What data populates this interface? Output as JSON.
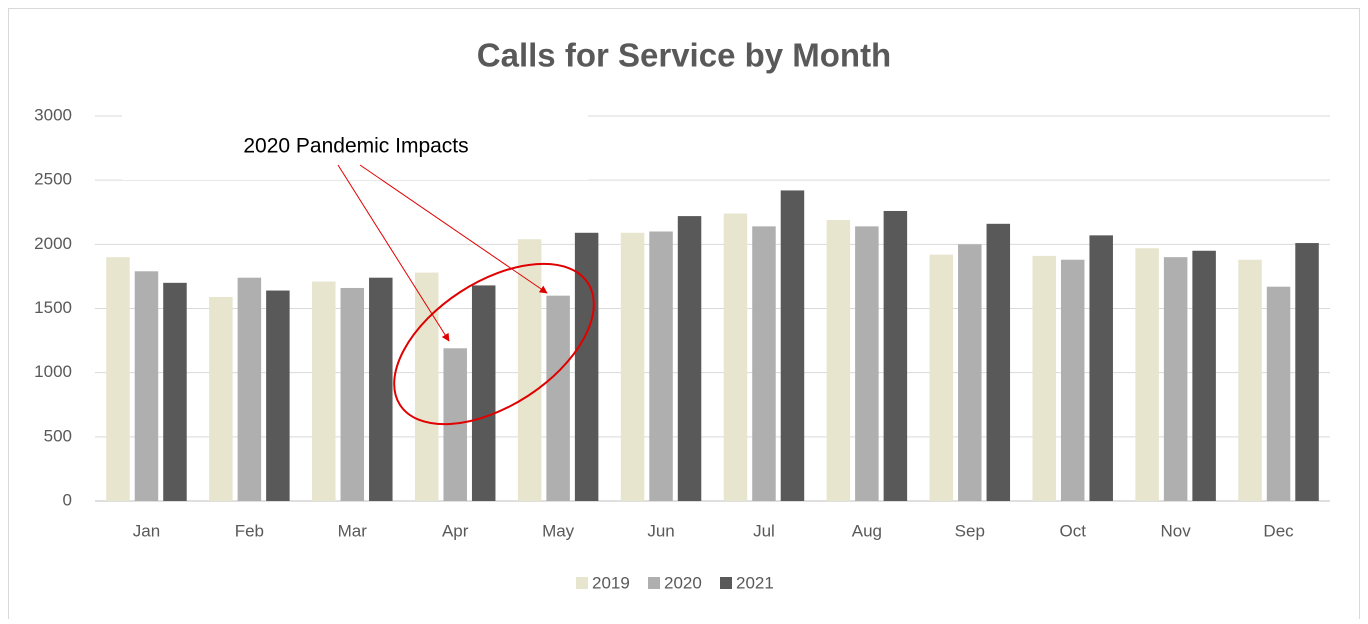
{
  "chart_data": {
    "type": "bar",
    "title": "Calls for Service by Month",
    "annotation": "2020 Pandemic Impacts",
    "categories": [
      "Jan",
      "Feb",
      "Mar",
      "Apr",
      "May",
      "Jun",
      "Jul",
      "Aug",
      "Sep",
      "Oct",
      "Nov",
      "Dec"
    ],
    "series": [
      {
        "name": "2019",
        "color": "#e8e5cf",
        "values": [
          1900,
          1590,
          1710,
          1780,
          2040,
          2090,
          2240,
          2190,
          1920,
          1910,
          1970,
          1880
        ]
      },
      {
        "name": "2020",
        "color": "#afafaf",
        "values": [
          1790,
          1740,
          1660,
          1190,
          1600,
          2100,
          2140,
          2140,
          2000,
          1880,
          1900,
          1670
        ]
      },
      {
        "name": "2021",
        "color": "#595959",
        "values": [
          1700,
          1640,
          1740,
          1680,
          2090,
          2220,
          2420,
          2260,
          2160,
          2070,
          1950,
          2010
        ]
      }
    ],
    "ylim": [
      0,
      3000
    ],
    "yticks": [
      0,
      500,
      1000,
      1500,
      2000,
      2500,
      3000
    ],
    "grid": true,
    "legend": "bottom"
  }
}
